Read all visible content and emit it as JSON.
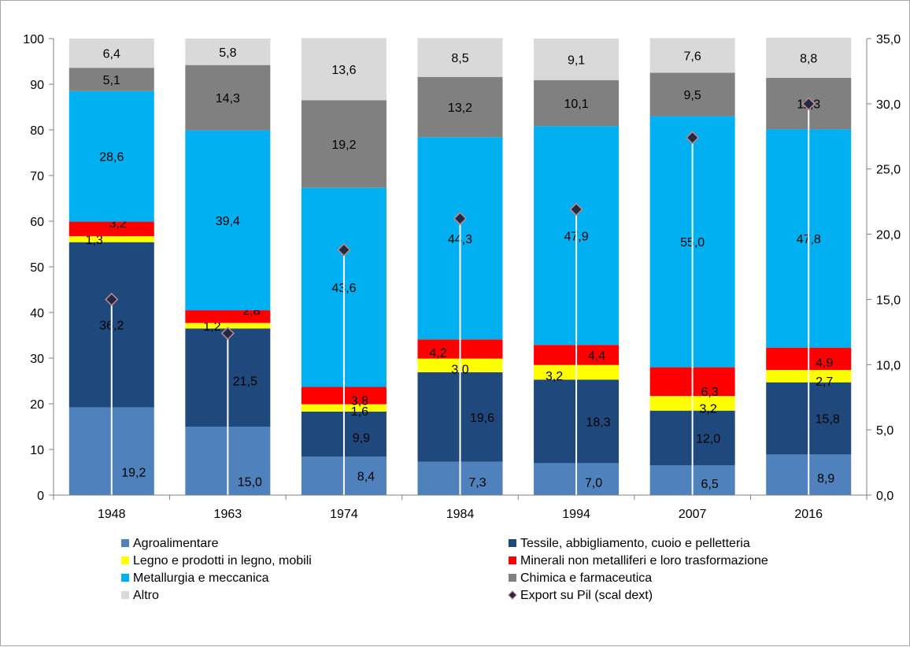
{
  "chart_data": {
    "type": "bar",
    "stacked": true,
    "categories": [
      "1948",
      "1963",
      "1974",
      "1984",
      "1994",
      "2007",
      "2016"
    ],
    "series": [
      {
        "name": "Agroalimentare",
        "color": "#4f81bd",
        "values": [
          19.2,
          15.0,
          8.4,
          7.3,
          7.0,
          6.5,
          8.9
        ],
        "labels": [
          "19,2",
          "15,0",
          "8,4",
          "7,3",
          "7,0",
          "6,5",
          "8,9"
        ]
      },
      {
        "name": "Tessile, abbigliamento, cuoio e pelletteria",
        "color": "#1f497d",
        "values": [
          36.2,
          21.5,
          9.9,
          19.6,
          18.3,
          12.0,
          15.8
        ],
        "labels": [
          "36,2",
          "21,5",
          "9,9",
          "19,6",
          "18,3",
          "12,0",
          "15,8"
        ]
      },
      {
        "name": "Legno e prodotti in legno, mobili",
        "color": "#ffff00",
        "values": [
          1.3,
          1.2,
          1.6,
          3.0,
          3.2,
          3.2,
          2.7
        ],
        "labels": [
          "1,3",
          "1,2",
          "1,6",
          "3,0",
          "3,2",
          "3,2",
          "2,7"
        ]
      },
      {
        "name": "Minerali non metalliferi e loro trasformazione",
        "color": "#ff0000",
        "values": [
          3.2,
          2.8,
          3.8,
          4.2,
          4.4,
          6.3,
          4.9
        ],
        "labels": [
          "3,2",
          "2,8",
          "3,8",
          "4,2",
          "4,4",
          "6,3",
          "4,9"
        ]
      },
      {
        "name": "Metallurgia e meccanica",
        "color": "#00b0f0",
        "values": [
          28.6,
          39.4,
          43.6,
          44.3,
          47.9,
          55.0,
          47.8
        ],
        "labels": [
          "28,6",
          "39,4",
          "43,6",
          "44,3",
          "47,9",
          "55,0",
          "47,8"
        ]
      },
      {
        "name": "Chimica e farmaceutica",
        "color": "#808080",
        "values": [
          5.1,
          14.3,
          19.2,
          13.2,
          10.1,
          9.5,
          11.3
        ],
        "labels": [
          "5,1",
          "14,3",
          "19,2",
          "13,2",
          "10,1",
          "9,5",
          "11,3"
        ]
      },
      {
        "name": "Altro",
        "color": "#d9d9d9",
        "values": [
          6.4,
          5.8,
          13.6,
          8.5,
          9.1,
          7.6,
          8.8
        ],
        "labels": [
          "6,4",
          "5,8",
          "13,6",
          "8,5",
          "9,1",
          "7,6",
          "8,8"
        ]
      }
    ],
    "line_series": {
      "name": "Export su Pil (scal dext)",
      "axis": "right",
      "values": [
        15.0,
        12.4,
        18.8,
        21.2,
        21.9,
        27.4,
        30.0
      ],
      "marker_fill": "#1f2a44",
      "marker_edge": "#c9868a",
      "drop_line_color": "#ffffff"
    },
    "y_left": {
      "range": [
        0,
        100
      ],
      "ticks": [
        "0",
        "10",
        "20",
        "30",
        "40",
        "50",
        "60",
        "70",
        "80",
        "90",
        "100"
      ]
    },
    "y_right": {
      "range": [
        0,
        35
      ],
      "ticks": [
        "0,0",
        "5,0",
        "10,0",
        "15,0",
        "20,0",
        "25,0",
        "30,0",
        "35,0"
      ]
    },
    "grid": false,
    "legend_position": "bottom"
  }
}
